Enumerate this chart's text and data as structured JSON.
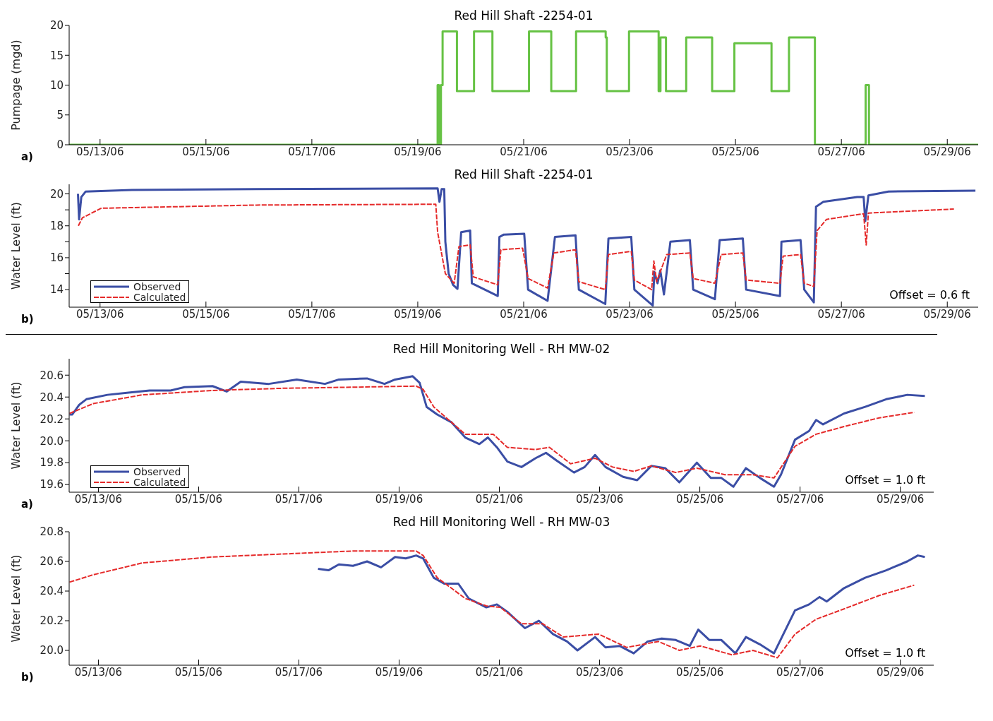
{
  "chart_data": [
    {
      "type": "step",
      "title": "Red Hill Shaft -2254-01",
      "ylabel": "Pumpage (mgd)",
      "xlim": [
        "--05-12T10:00",
        "--05-29T14:00"
      ],
      "xticks": [
        {
          "value": "--05-13",
          "label": "05/13/06"
        },
        {
          "value": "--05-15",
          "label": "05/15/06"
        },
        {
          "value": "--05-17",
          "label": "05/17/06"
        },
        {
          "value": "--05-19",
          "label": "05/19/06"
        },
        {
          "value": "--05-21",
          "label": "05/21/06"
        },
        {
          "value": "--05-23",
          "label": "05/23/06"
        },
        {
          "value": "--05-25",
          "label": "05/25/06"
        },
        {
          "value": "--05-27",
          "label": "05/27/06"
        },
        {
          "value": "--05-29",
          "label": "05/29/06"
        }
      ],
      "ylim": [
        0,
        20
      ],
      "yticks": [
        0,
        5,
        10,
        15,
        20
      ],
      "annotations": [
        "a)"
      ],
      "series": [
        {
          "color": "#66c244",
          "x": [
            "--05-12T10:00",
            "--05-19T09:00",
            "--05-19T09:36",
            "--05-19T10:30",
            "--05-19T11:15",
            "--05-19T17:45",
            "--05-20T01:30",
            "--05-20T09:50",
            "--05-21T02:25",
            "--05-21T12:30",
            "--05-21T23:45",
            "--05-22T13:10",
            "--05-22T13:40",
            "--05-22T23:45",
            "--05-23T13:10",
            "--05-23T14:00",
            "--05-23T16:30",
            "--05-24T01:40",
            "--05-24T13:25",
            "--05-24T23:30",
            "--05-25T16:20",
            "--05-26T00:15",
            "--05-26T12:00",
            "--05-27T11:00",
            "--05-27T12:30",
            "--05-29T14:00"
          ],
          "values": [
            0,
            10,
            0,
            10,
            19,
            9,
            19,
            9,
            19,
            9,
            19,
            18,
            9,
            19,
            9,
            18,
            9,
            18,
            9,
            17,
            9,
            18,
            0,
            10,
            0,
            0
          ]
        }
      ]
    },
    {
      "type": "line",
      "title": "Red Hill Shaft -2254-01",
      "ylabel": "Water Level (ft)",
      "xlim": [
        "--05-12T10:00",
        "--05-29T14:00"
      ],
      "xticks": [
        {
          "value": "--05-13",
          "label": "05/13/06"
        },
        {
          "value": "--05-15",
          "label": "05/15/06"
        },
        {
          "value": "--05-17",
          "label": "05/17/06"
        },
        {
          "value": "--05-19",
          "label": "05/19/06"
        },
        {
          "value": "--05-21",
          "label": "05/21/06"
        },
        {
          "value": "--05-23",
          "label": "05/23/06"
        },
        {
          "value": "--05-25",
          "label": "05/25/06"
        },
        {
          "value": "--05-27",
          "label": "05/27/06"
        },
        {
          "value": "--05-29",
          "label": "05/29/06"
        }
      ],
      "ylim": [
        12.9,
        20.6
      ],
      "yticks": [
        14,
        {
          "value": 15,
          "label": null
        },
        16,
        {
          "value": 17,
          "label": null
        },
        18,
        {
          "value": 19,
          "label": null
        },
        20
      ],
      "legend": "bottom left",
      "annotations": [
        "b)",
        "Offset = 0.6 ft"
      ],
      "series": [
        {
          "name": "Observed",
          "color": "#3b4ea5",
          "line_style": "solid",
          "x": [
            "--05-12T14:00",
            "--05-12T14:30",
            "--05-12T15:30",
            "--05-12T17:30",
            "--05-13T14:30",
            "--05-15T23:00",
            "--05-19T09:00",
            "--05-19T09:50",
            "--05-19T10:50",
            "--05-19T12:00",
            "--05-19T12:30",
            "--05-19T14:00",
            "--05-19T16:00",
            "--05-19T18:00",
            "--05-19T19:40",
            "--05-19T23:45",
            "--05-20T00:30",
            "--05-20T12:15",
            "--05-20T13:00",
            "--05-20T15:00",
            "--05-21T00:15",
            "--05-21T02:00",
            "--05-21T10:50",
            "--05-21T14:10",
            "--05-21T23:30",
            "--05-22T01:00",
            "--05-22T13:00",
            "--05-22T14:25",
            "--05-23T00:45",
            "--05-23T02:10",
            "--05-23T10:30",
            "--05-23T11:15",
            "--05-23T12:40",
            "--05-23T13:55",
            "--05-23T15:35",
            "--05-23T18:30",
            "--05-24T03:20",
            "--05-24T04:50",
            "--05-24T14:40",
            "--05-24T16:50",
            "--05-25T03:20",
            "--05-25T04:50",
            "--05-25T20:10",
            "--05-25T20:50",
            "--05-26T05:30",
            "--05-26T07:10",
            "--05-26T11:30",
            "--05-26T12:30",
            "--05-26T15:50",
            "--05-27T07:10",
            "--05-27T10:05",
            "--05-27T10:50",
            "--05-27T12:15",
            "--05-27T21:20",
            "--05-29T12:45"
          ],
          "values": [
            20.0,
            18.4,
            19.8,
            20.15,
            20.25,
            20.3,
            20.35,
            19.5,
            20.3,
            20.3,
            17.0,
            15.0,
            14.3,
            14.05,
            17.6,
            17.7,
            14.4,
            13.6,
            17.3,
            17.45,
            17.5,
            14.0,
            13.3,
            17.3,
            17.4,
            14.0,
            13.1,
            17.2,
            17.3,
            14.0,
            13.0,
            15.1,
            14.4,
            15.2,
            13.7,
            17.0,
            17.1,
            14.0,
            13.4,
            17.1,
            17.2,
            14.0,
            13.6,
            17.0,
            17.1,
            14.0,
            13.2,
            19.2,
            19.5,
            19.8,
            19.8,
            18.3,
            19.9,
            20.15,
            20.2
          ]
        },
        {
          "name": "Calculated",
          "color": "#e52a2a",
          "line_style": "dashed",
          "x": [
            "--05-12T14:10",
            "--05-12T16:00",
            "--05-13T00:30",
            "--05-15T23:00",
            "--05-19T08:10",
            "--05-19T09:00",
            "--05-19T12:30",
            "--05-19T16:30",
            "--05-19T18:40",
            "--05-19T23:45",
            "--05-20T01:10",
            "--05-20T12:15",
            "--05-20T13:40",
            "--05-20T23:30",
            "--05-21T02:00",
            "--05-21T10:50",
            "--05-21T13:40",
            "--05-21T23:30",
            "--05-22T01:00",
            "--05-22T13:00",
            "--05-22T14:25",
            "--05-23T00:45",
            "--05-23T02:10",
            "--05-23T10:00",
            "--05-23T11:00",
            "--05-23T12:15",
            "--05-23T16:50",
            "--05-24T03:20",
            "--05-24T04:50",
            "--05-24T14:40",
            "--05-24T17:30",
            "--05-25T03:20",
            "--05-25T04:50",
            "--05-25T20:10",
            "--05-25T21:35",
            "--05-26T05:30",
            "--05-26T07:10",
            "--05-26T11:30",
            "--05-26T13:00",
            "--05-26T17:15",
            "--05-27T07:10",
            "--05-27T10:05",
            "--05-27T11:15",
            "--05-27T12:15",
            "--05-29T03:00"
          ],
          "values": [
            18.0,
            18.5,
            19.1,
            19.3,
            19.35,
            17.6,
            15.0,
            14.4,
            16.7,
            16.8,
            14.8,
            14.3,
            16.5,
            16.6,
            14.7,
            14.1,
            16.3,
            16.5,
            14.5,
            14.0,
            16.2,
            16.4,
            14.6,
            14.0,
            15.8,
            14.5,
            16.2,
            16.3,
            14.7,
            14.4,
            16.2,
            16.3,
            14.6,
            14.4,
            16.1,
            16.2,
            14.4,
            14.2,
            17.7,
            18.4,
            18.7,
            18.75,
            16.8,
            18.8,
            19.05
          ]
        }
      ]
    },
    {
      "type": "line",
      "title": "Red Hill Monitoring Well - RH MW-02",
      "ylabel": "Water Level (ft)",
      "xlim": [
        "--05-12T10:00",
        "--05-29T16:00"
      ],
      "xticks": [
        {
          "value": "--05-13",
          "label": "05/13/06"
        },
        {
          "value": "--05-15",
          "label": "05/15/06"
        },
        {
          "value": "--05-17",
          "label": "05/17/06"
        },
        {
          "value": "--05-19",
          "label": "05/19/06"
        },
        {
          "value": "--05-21",
          "label": "05/21/06"
        },
        {
          "value": "--05-23",
          "label": "05/23/06"
        },
        {
          "value": "--05-25",
          "label": "05/25/06"
        },
        {
          "value": "--05-27",
          "label": "05/27/06"
        },
        {
          "value": "--05-29",
          "label": "05/29/06"
        }
      ],
      "ylim": [
        19.53,
        20.75
      ],
      "yticks": [
        19.6,
        19.8,
        {
          "value": 20,
          "label": "20.0"
        },
        20.2,
        20.4,
        20.6
      ],
      "legend": "bottom left",
      "annotations": [
        "a)",
        "Offset = 1.0 ft"
      ],
      "series": [
        {
          "name": "Observed",
          "color": "#3b4ea5",
          "line_style": "solid",
          "x": [
            "--05-12T10:10",
            "--05-12T11:30",
            "--05-12T14:50",
            "--05-12T18:15",
            "--05-13T04:20",
            "--05-13T14:25",
            "--05-14T00:30",
            "--05-14T10:35",
            "--05-14T17:15",
            "--05-15T06:40",
            "--05-15T13:25",
            "--05-15T20:10",
            "--05-16T09:35",
            "--05-16T23:00",
            "--05-17T12:30",
            "--05-17T19:10",
            "--05-18T08:40",
            "--05-18T17:00",
            "--05-18T22:05",
            "--05-19T06:30",
            "--05-19T09:50",
            "--05-19T13:10",
            "--05-19T18:15",
            "--05-20T01:00",
            "--05-20T07:40",
            "--05-20T14:25",
            "--05-20T18:30",
            "--05-20T22:50",
            "--05-21T03:50",
            "--05-21T10:35",
            "--05-21T17:15",
            "--05-21T22:20",
            "--05-22T03:20",
            "--05-22T11:45",
            "--05-22T16:50",
            "--05-22T21:50",
            "--05-23T02:50",
            "--05-23T11:15",
            "--05-23T18:00",
            "--05-24T00:45",
            "--05-24T07:25",
            "--05-24T14:10",
            "--05-24T22:35",
            "--05-25T05:15",
            "--05-25T10:20",
            "--05-25T16:05",
            "--05-25T22:05",
            "--05-26T04:50",
            "--05-26T11:30",
            "--05-26T14:50",
            "--05-26T21:35",
            "--05-27T04:20",
            "--05-27T07:40",
            "--05-27T11:00",
            "--05-27T21:05",
            "--05-28T07:10",
            "--05-28T17:15",
            "--05-29T03:20",
            "--05-29T11:45"
          ],
          "values": [
            20.24,
            20.24,
            20.33,
            20.38,
            20.42,
            20.44,
            20.46,
            20.46,
            20.49,
            20.5,
            20.45,
            20.54,
            20.52,
            20.56,
            20.52,
            20.56,
            20.57,
            20.52,
            20.56,
            20.59,
            20.53,
            20.31,
            20.24,
            20.17,
            20.03,
            19.97,
            20.03,
            19.94,
            19.81,
            19.76,
            19.84,
            19.89,
            19.82,
            19.71,
            19.76,
            19.87,
            19.76,
            19.67,
            19.64,
            19.77,
            19.75,
            19.62,
            19.8,
            19.66,
            19.66,
            19.58,
            19.75,
            19.66,
            19.58,
            19.69,
            20.01,
            20.09,
            20.19,
            20.15,
            20.25,
            20.31,
            20.38,
            20.42,
            20.41
          ]
        },
        {
          "name": "Calculated",
          "color": "#e52a2a",
          "line_style": "dashed",
          "x": [
            "--05-12T10:10",
            "--05-12T21:35",
            "--05-13T21:05",
            "--05-15T06:40",
            "--05-16T16:20",
            "--05-18T01:55",
            "--05-19T08:10",
            "--05-19T11:30",
            "--05-19T16:35",
            "--05-20T01:00",
            "--05-20T07:40",
            "--05-20T21:05",
            "--05-21T03:50",
            "--05-21T17:15",
            "--05-22T00:00",
            "--05-22T10:05",
            "--05-22T21:50",
            "--05-23T06:15",
            "--05-23T16:20",
            "--05-24T00:45",
            "--05-24T12:30",
            "--05-24T22:35",
            "--05-25T12:00",
            "--05-26T01:25",
            "--05-26T11:30",
            "--05-26T21:35",
            "--05-27T07:40",
            "--05-27T21:05",
            "--05-28T13:55",
            "--05-29T06:40"
          ],
          "values": [
            20.25,
            20.34,
            20.42,
            20.46,
            20.48,
            20.49,
            20.5,
            20.47,
            20.31,
            20.17,
            20.06,
            20.06,
            19.94,
            19.92,
            19.94,
            19.79,
            19.84,
            19.76,
            19.72,
            19.77,
            19.71,
            19.75,
            19.69,
            19.69,
            19.66,
            19.95,
            20.06,
            20.13,
            20.21,
            20.26
          ]
        }
      ]
    },
    {
      "type": "line",
      "title": "Red Hill Monitoring Well - RH MW-03",
      "ylabel": "Water Level (ft)",
      "xlim": [
        "--05-12T10:00",
        "--05-29T16:00"
      ],
      "xticks": [
        {
          "value": "--05-13",
          "label": "05/13/06"
        },
        {
          "value": "--05-15",
          "label": "05/15/06"
        },
        {
          "value": "--05-17",
          "label": "05/17/06"
        },
        {
          "value": "--05-19",
          "label": "05/19/06"
        },
        {
          "value": "--05-21",
          "label": "05/21/06"
        },
        {
          "value": "--05-23",
          "label": "05/23/06"
        },
        {
          "value": "--05-25",
          "label": "05/25/06"
        },
        {
          "value": "--05-27",
          "label": "05/27/06"
        },
        {
          "value": "--05-29",
          "label": "05/29/06"
        }
      ],
      "ylim": [
        19.9,
        20.8
      ],
      "yticks": [
        {
          "value": 20,
          "label": "20.0"
        },
        20.2,
        20.4,
        20.6,
        20.8
      ],
      "annotations": [
        "b)",
        "Offset = 1.0 ft"
      ],
      "series": [
        {
          "color": "#3b4ea5",
          "line_style": "solid",
          "x": [
            "--05-17T09:10",
            "--05-17T14:10",
            "--05-17T19:10",
            "--05-18T01:55",
            "--05-18T08:40",
            "--05-18T15:20",
            "--05-18T22:05",
            "--05-19T03:10",
            "--05-19T08:10",
            "--05-19T11:30",
            "--05-19T16:35",
            "--05-19T21:35",
            "--05-20T04:20",
            "--05-20T09:20",
            "--05-20T17:45",
            "--05-20T22:50",
            "--05-21T03:50",
            "--05-21T12:15",
            "--05-21T18:55",
            "--05-22T01:40",
            "--05-22T08:25",
            "--05-22T13:25",
            "--05-22T21:50",
            "--05-23T02:50",
            "--05-23T09:35",
            "--05-23T16:20",
            "--05-23T23:00",
            "--05-24T05:45",
            "--05-24T12:30",
            "--05-24T19:10",
            "--05-24T23:15",
            "--05-25T04:35",
            "--05-25T10:20",
            "--05-25T17:00",
            "--05-25T22:05",
            "--05-26T04:50",
            "--05-26T11:30",
            "--05-26T21:35",
            "--05-27T04:20",
            "--05-27T09:20",
            "--05-27T12:45",
            "--05-27T21:05",
            "--05-28T07:10",
            "--05-28T17:15",
            "--05-29T03:20",
            "--05-29T08:25",
            "--05-29T11:45"
          ],
          "values": [
            20.55,
            20.54,
            20.58,
            20.57,
            20.6,
            20.56,
            20.63,
            20.62,
            20.64,
            20.62,
            20.49,
            20.45,
            20.45,
            20.35,
            20.29,
            20.31,
            20.26,
            20.15,
            20.2,
            20.11,
            20.06,
            20.0,
            20.09,
            20.02,
            20.03,
            19.98,
            20.06,
            20.08,
            20.07,
            20.03,
            20.14,
            20.07,
            20.07,
            19.98,
            20.09,
            20.04,
            19.98,
            20.27,
            20.31,
            20.36,
            20.33,
            20.42,
            20.49,
            20.54,
            20.6,
            20.64,
            20.63
          ]
        },
        {
          "color": "#e52a2a",
          "line_style": "dashed",
          "x": [
            "--05-12T10:10",
            "--05-12T21:35",
            "--05-13T21:05",
            "--05-15T06:40",
            "--05-16T16:20",
            "--05-18T01:55",
            "--05-19T08:10",
            "--05-19T11:30",
            "--05-19T18:15",
            "--05-20T01:00",
            "--05-20T07:40",
            "--05-20T17:45",
            "--05-21T00:30",
            "--05-21T10:35",
            "--05-21T20:40",
            "--05-22T06:40",
            "--05-22T23:30",
            "--05-23T13:00",
            "--05-24T04:05",
            "--05-24T14:10",
            "--05-25T00:15",
            "--05-25T15:20",
            "--05-26T01:25",
            "--05-26T13:10",
            "--05-26T21:35",
            "--05-27T07:40",
            "--05-27T21:05",
            "--05-28T13:55",
            "--05-29T06:40"
          ],
          "values": [
            20.46,
            20.51,
            20.59,
            20.63,
            20.65,
            20.67,
            20.67,
            20.64,
            20.49,
            20.42,
            20.35,
            20.3,
            20.29,
            20.18,
            20.18,
            20.09,
            20.11,
            20.02,
            20.06,
            20.0,
            20.03,
            19.97,
            20.0,
            19.95,
            20.11,
            20.21,
            20.28,
            20.37,
            20.44
          ]
        }
      ]
    }
  ]
}
